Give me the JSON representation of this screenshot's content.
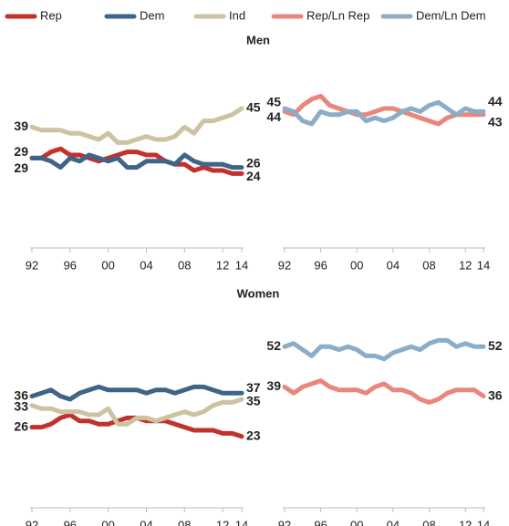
{
  "chart_data": [
    {
      "type": "line",
      "title": "Men",
      "x": [
        1992,
        1993,
        1994,
        1995,
        1996,
        1997,
        1998,
        1999,
        2000,
        2001,
        2002,
        2003,
        2004,
        2005,
        2006,
        2007,
        2008,
        2009,
        2010,
        2011,
        2012,
        2013,
        2014
      ],
      "xlim": [
        1992,
        2014
      ],
      "xticks": [
        {
          "value": 1992,
          "label": "92"
        },
        {
          "value": 1996,
          "label": "96"
        },
        {
          "value": 2000,
          "label": "00"
        },
        {
          "value": 2004,
          "label": "04"
        },
        {
          "value": 2008,
          "label": "08"
        },
        {
          "value": 2012,
          "label": "12"
        },
        {
          "value": 2014,
          "label": "14"
        }
      ],
      "ylim": [
        0,
        75
      ],
      "series": [
        {
          "name": "Rep",
          "color": "#c4302b",
          "values": [
            29,
            29,
            31,
            32,
            30,
            30,
            29,
            28,
            29,
            30,
            31,
            31,
            30,
            30,
            28,
            27,
            27,
            25,
            26,
            25,
            25,
            24,
            24
          ]
        },
        {
          "name": "Dem",
          "color": "#3e6488",
          "values": [
            29,
            29,
            28,
            26,
            29,
            28,
            30,
            29,
            28,
            29,
            26,
            26,
            28,
            28,
            28,
            27,
            30,
            28,
            27,
            27,
            27,
            26,
            26
          ]
        },
        {
          "name": "Ind",
          "color": "#cdc2a2",
          "values": [
            39,
            38,
            38,
            38,
            37,
            37,
            36,
            35,
            37,
            34,
            34,
            35,
            36,
            35,
            35,
            36,
            39,
            37,
            41,
            41,
            42,
            43,
            45
          ]
        }
      ]
    },
    {
      "type": "line",
      "x": [
        1992,
        1993,
        1994,
        1995,
        1996,
        1997,
        1998,
        1999,
        2000,
        2001,
        2002,
        2003,
        2004,
        2005,
        2006,
        2007,
        2008,
        2009,
        2010,
        2011,
        2012,
        2013,
        2014
      ],
      "xlim": [
        1992,
        2014
      ],
      "xticks": [
        {
          "value": 1992,
          "label": "92"
        },
        {
          "value": 1996,
          "label": "96"
        },
        {
          "value": 2000,
          "label": "00"
        },
        {
          "value": 2004,
          "label": "04"
        },
        {
          "value": 2008,
          "label": "08"
        },
        {
          "value": 2012,
          "label": "12"
        },
        {
          "value": 2014,
          "label": "14"
        }
      ],
      "ylim": [
        0,
        75
      ],
      "series": [
        {
          "name": "Rep/Ln Rep",
          "color": "#e8877c",
          "values": [
            44,
            43,
            46,
            48,
            49,
            46,
            45,
            44,
            43,
            43,
            44,
            45,
            45,
            44,
            43,
            42,
            41,
            40,
            42,
            43,
            43,
            43,
            43
          ]
        },
        {
          "name": "Dem/Ln Dem",
          "color": "#8cadc8",
          "values": [
            45,
            44,
            41,
            40,
            44,
            43,
            43,
            44,
            44,
            41,
            42,
            41,
            42,
            44,
            45,
            44,
            46,
            47,
            45,
            43,
            45,
            44,
            44
          ]
        }
      ]
    },
    {
      "type": "line",
      "title": "Women",
      "x": [
        1992,
        1993,
        1994,
        1995,
        1996,
        1997,
        1998,
        1999,
        2000,
        2001,
        2002,
        2003,
        2004,
        2005,
        2006,
        2007,
        2008,
        2009,
        2010,
        2011,
        2012,
        2013,
        2014
      ],
      "xlim": [
        1992,
        2014
      ],
      "xticks": [
        {
          "value": 1992,
          "label": "92"
        },
        {
          "value": 1996,
          "label": "96"
        },
        {
          "value": 2000,
          "label": "00"
        },
        {
          "value": 2004,
          "label": "04"
        },
        {
          "value": 2008,
          "label": "08"
        },
        {
          "value": 2012,
          "label": "12"
        },
        {
          "value": 2014,
          "label": "14"
        }
      ],
      "ylim": [
        0,
        75
      ],
      "series": [
        {
          "color": "#c4302b",
          "values": [
            26,
            26,
            27,
            29,
            30,
            28,
            28,
            27,
            27,
            28,
            29,
            29,
            28,
            28,
            28,
            27,
            26,
            25,
            25,
            25,
            24,
            24,
            23
          ]
        },
        {
          "color": "#3e6488",
          "values": [
            36,
            37,
            38,
            36,
            35,
            37,
            38,
            39,
            38,
            38,
            38,
            38,
            37,
            38,
            38,
            37,
            38,
            39,
            39,
            38,
            37,
            37,
            37
          ]
        },
        {
          "color": "#cdc2a2",
          "values": [
            33,
            32,
            32,
            31,
            31,
            31,
            30,
            30,
            32,
            27,
            27,
            29,
            29,
            28,
            29,
            30,
            31,
            30,
            31,
            33,
            34,
            34,
            35
          ]
        }
      ]
    },
    {
      "type": "line",
      "x": [
        1992,
        1993,
        1994,
        1995,
        1996,
        1997,
        1998,
        1999,
        2000,
        2001,
        2002,
        2003,
        2004,
        2005,
        2006,
        2007,
        2008,
        2009,
        2010,
        2011,
        2012,
        2013,
        2014
      ],
      "xlim": [
        1992,
        2014
      ],
      "xticks": [
        {
          "value": 1992,
          "label": "92"
        },
        {
          "value": 1996,
          "label": "96"
        },
        {
          "value": 2000,
          "label": "00"
        },
        {
          "value": 2004,
          "label": "04"
        },
        {
          "value": 2008,
          "label": "08"
        },
        {
          "value": 2012,
          "label": "12"
        },
        {
          "value": 2014,
          "label": "14"
        }
      ],
      "ylim": [
        0,
        75
      ],
      "series": [
        {
          "color": "#e8877c",
          "values": [
            39,
            37,
            39,
            40,
            41,
            39,
            38,
            38,
            38,
            37,
            39,
            40,
            38,
            38,
            37,
            35,
            34,
            35,
            37,
            38,
            38,
            38,
            36
          ]
        },
        {
          "color": "#8cadc8",
          "values": [
            52,
            53,
            51,
            49,
            52,
            52,
            51,
            52,
            51,
            49,
            49,
            48,
            50,
            51,
            52,
            51,
            53,
            54,
            54,
            52,
            53,
            52,
            52
          ]
        }
      ]
    }
  ]
}
